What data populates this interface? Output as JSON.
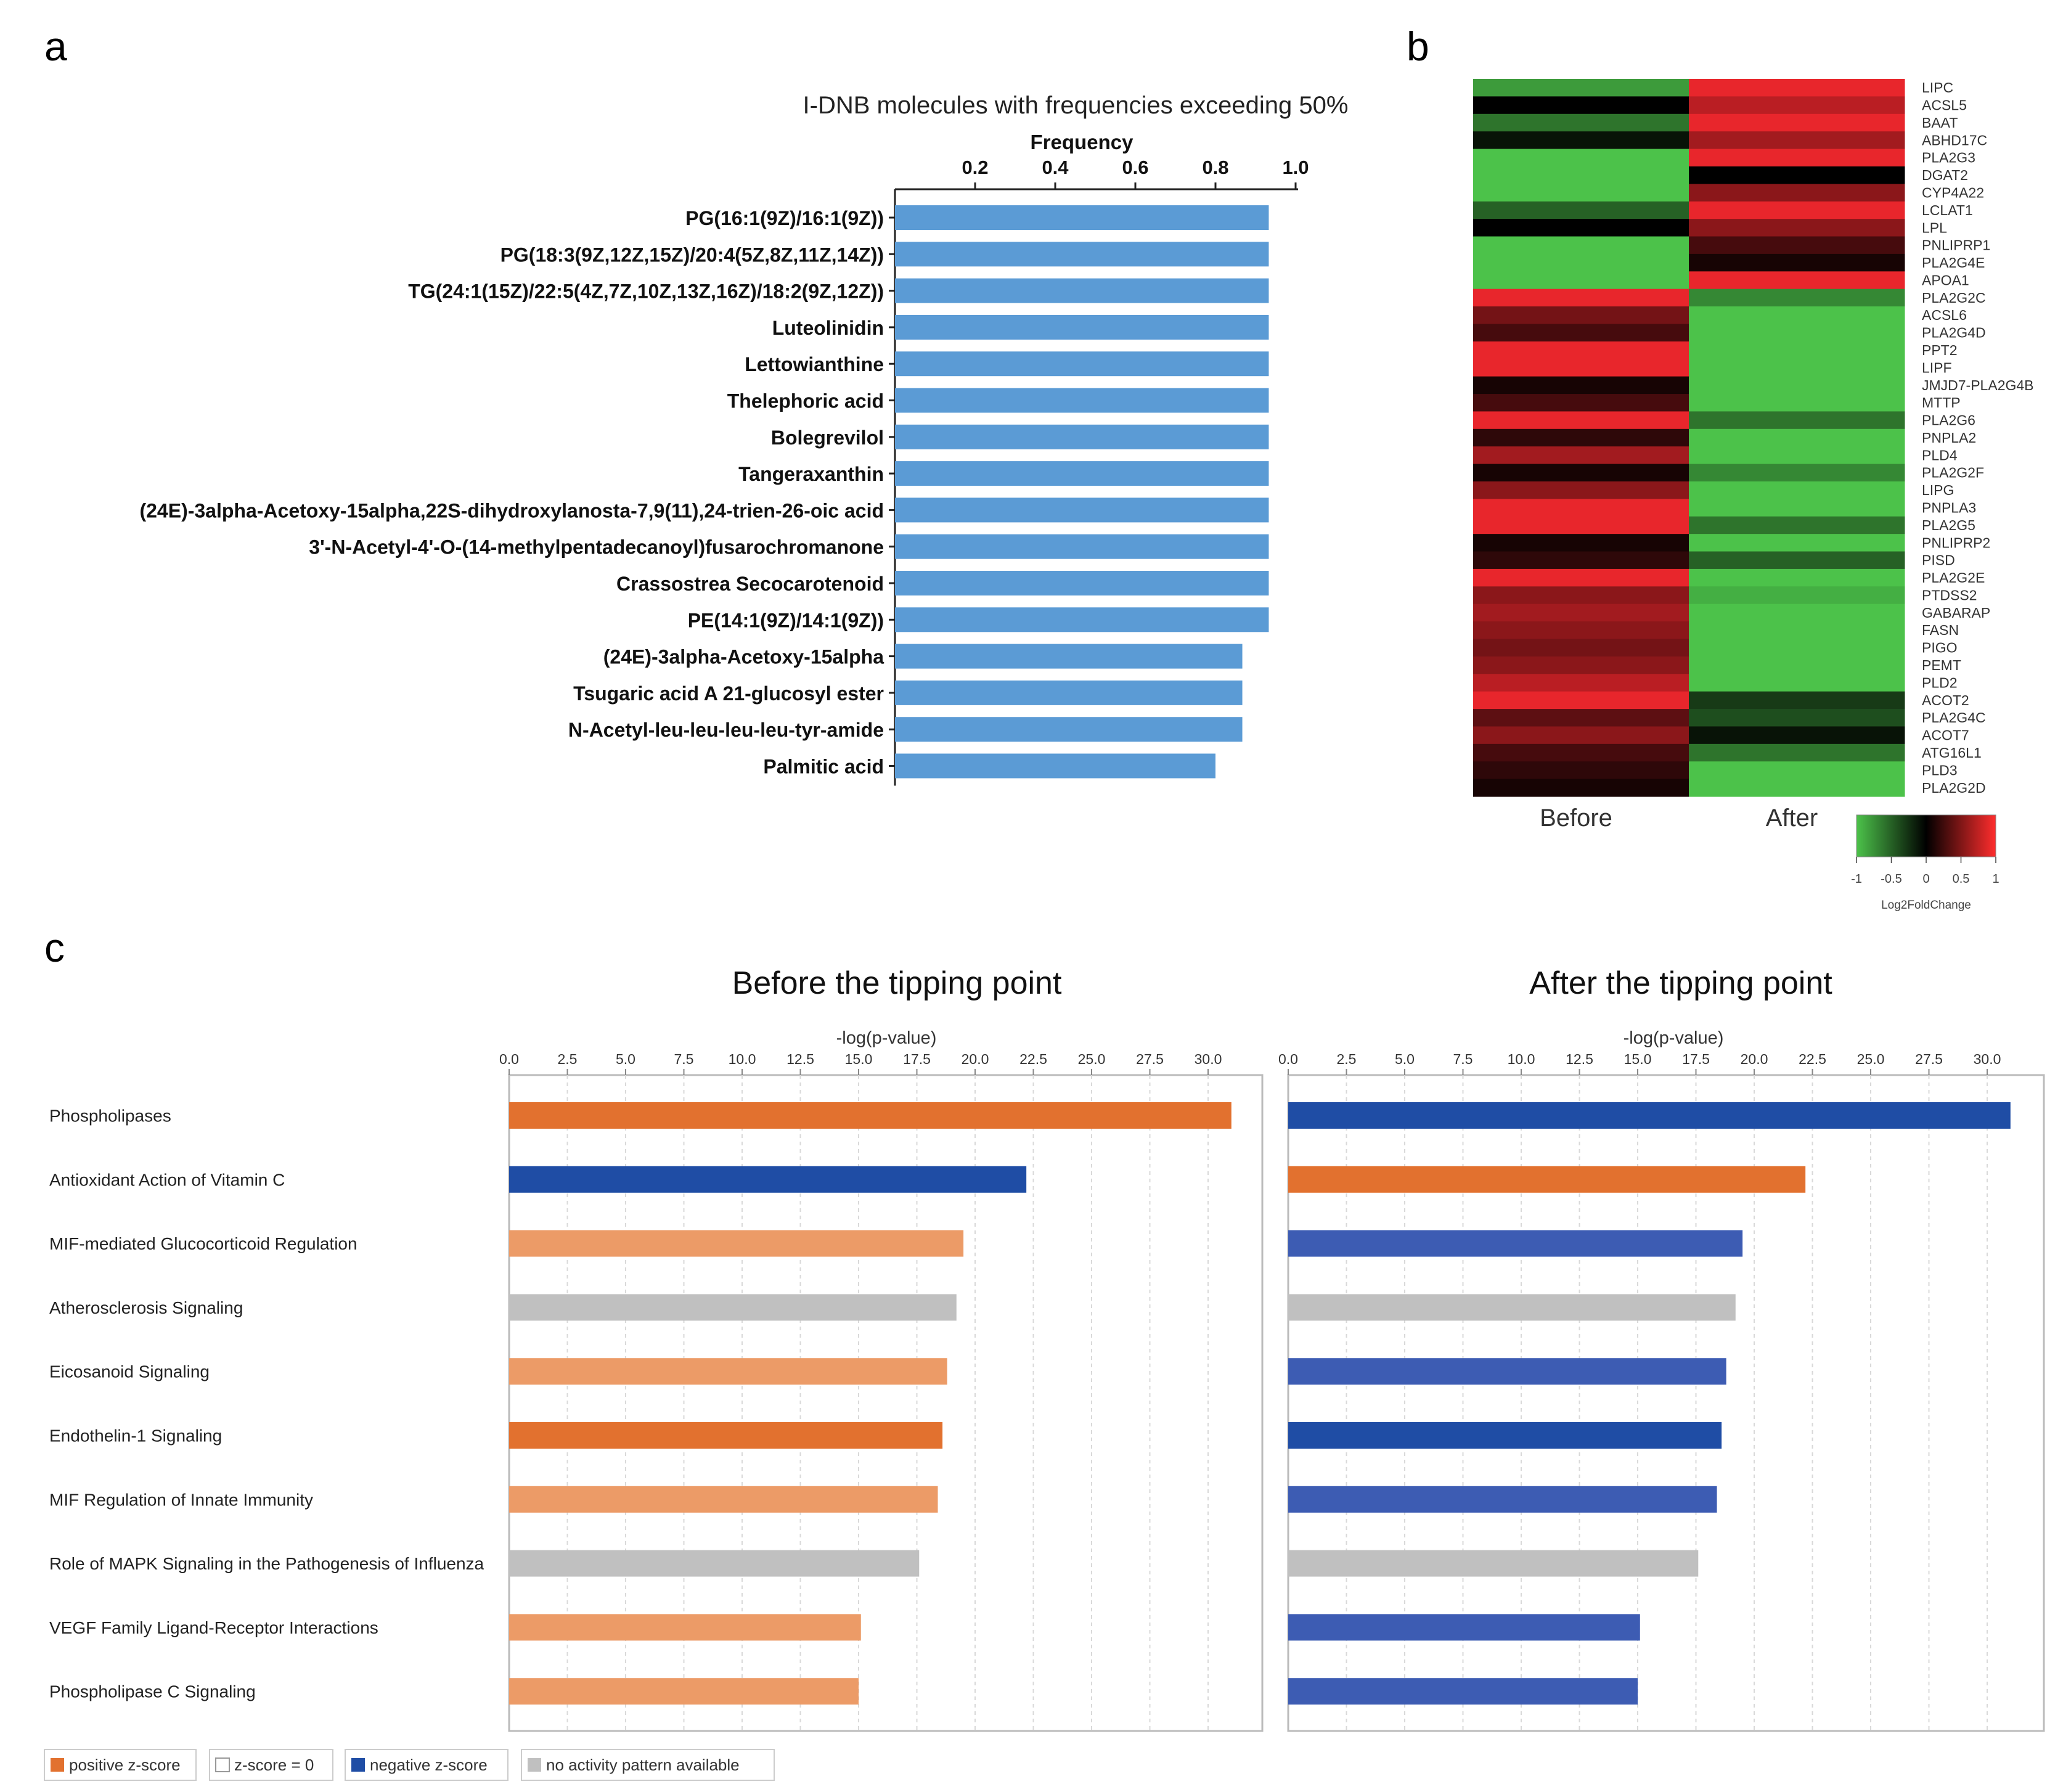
{
  "panels": {
    "a": "a",
    "b": "b",
    "c": "c"
  },
  "colors": {
    "blue_bar": "#5b9bd5",
    "orange": "#e2712f",
    "light_orange": "#ec9b67",
    "dark_blue": "#1f4da5",
    "mid_blue": "#3d5cb3",
    "gray": "#c0c0c0",
    "green": "#66c04a",
    "red": "#e8262c"
  },
  "chart_data": [
    {
      "id": "a",
      "type": "bar",
      "orientation": "horizontal",
      "title": "I-DNB molecules with frequencies exceeding 50%",
      "xlabel": "Frequency",
      "xlim": [
        0,
        1.0
      ],
      "ticks": [
        0.2,
        0.4,
        0.6,
        0.8,
        1.0
      ],
      "tick_labels": [
        "0.2",
        "0.4",
        "0.6",
        "0.8",
        "1.0"
      ],
      "categories": [
        "PG(16:1(9Z)/16:1(9Z))",
        "PG(18:3(9Z,12Z,15Z)/20:4(5Z,8Z,11Z,14Z))",
        "TG(24:1(15Z)/22:5(4Z,7Z,10Z,13Z,16Z)/18:2(9Z,12Z))",
        "Luteolinidin",
        "Lettowianthine",
        "Thelephoric acid",
        "Bolegrevilol",
        "Tangeraxanthin",
        "(24E)-3alpha-Acetoxy-15alpha,22S-dihydroxylanosta-7,9(11),24-trien-26-oic acid",
        "3'-N-Acetyl-4'-O-(14-methylpentadecanoyl)fusarochromanone",
        "Crassostrea Secocarotenoid",
        "PE(14:1(9Z)/14:1(9Z))",
        "(24E)-3alpha-Acetoxy-15alpha",
        "Tsugaric acid A 21-glucosyl ester",
        "N-Acetyl-leu-leu-leu-leu-tyr-amide",
        "Palmitic acid"
      ],
      "values": [
        0.933,
        0.933,
        0.933,
        0.933,
        0.933,
        0.933,
        0.933,
        0.933,
        0.933,
        0.933,
        0.933,
        0.933,
        0.867,
        0.867,
        0.867,
        0.8
      ]
    },
    {
      "id": "b",
      "type": "heatmap",
      "columns": [
        "Before",
        "After"
      ],
      "rows": [
        "LIPC",
        "ACSL5",
        "BAAT",
        "ABHD17C",
        "PLA2G3",
        "DGAT2",
        "CYP4A22",
        "LCLAT1",
        "LPL",
        "PNLIPRP1",
        "PLA2G4E",
        "APOA1",
        "PLA2G2C",
        "ACSL6",
        "PLA2G4D",
        "PPT2",
        "LIPF",
        "JMJD7-PLA2G4B",
        "MTTP",
        "PLA2G6",
        "PNPLA2",
        "PLD4",
        "PLA2G2F",
        "LIPG",
        "PNPLA3",
        "PLA2G5",
        "PNLIPRP2",
        "PISD",
        "PLA2G2E",
        "PTDSS2",
        "GABARAP",
        "FASN",
        "PIGO",
        "PEMT",
        "PLD2",
        "ACOT2",
        "PLA2G4C",
        "ACOT7",
        "ATG16L1",
        "PLD3",
        "PLA2G2D"
      ],
      "values": [
        [
          -0.8,
          1.0
        ],
        [
          0.0,
          0.8
        ],
        [
          -0.6,
          1.0
        ],
        [
          -0.1,
          0.7
        ],
        [
          -1.0,
          1.0
        ],
        [
          -1.0,
          0.0
        ],
        [
          -1.0,
          0.6
        ],
        [
          -0.5,
          1.0
        ],
        [
          0.0,
          0.6
        ],
        [
          -1.0,
          0.3
        ],
        [
          -1.0,
          0.1
        ],
        [
          -1.0,
          1.0
        ],
        [
          1.0,
          -0.7
        ],
        [
          0.5,
          -1.0
        ],
        [
          0.3,
          -1.0
        ],
        [
          1.0,
          -1.0
        ],
        [
          1.0,
          -1.0
        ],
        [
          0.1,
          -1.0
        ],
        [
          0.3,
          -1.0
        ],
        [
          1.0,
          -0.6
        ],
        [
          0.2,
          -1.0
        ],
        [
          0.7,
          -1.0
        ],
        [
          0.1,
          -0.7
        ],
        [
          0.6,
          -1.0
        ],
        [
          1.0,
          -1.0
        ],
        [
          1.0,
          -0.6
        ],
        [
          0.1,
          -1.0
        ],
        [
          0.2,
          -0.5
        ],
        [
          1.0,
          -1.0
        ],
        [
          0.6,
          -0.9
        ],
        [
          0.7,
          -1.0
        ],
        [
          0.6,
          -1.0
        ],
        [
          0.5,
          -1.0
        ],
        [
          0.6,
          -1.0
        ],
        [
          0.8,
          -1.0
        ],
        [
          1.0,
          -0.3
        ],
        [
          0.4,
          -0.4
        ],
        [
          0.6,
          -0.1
        ],
        [
          0.3,
          -0.6
        ],
        [
          0.2,
          -1.0
        ],
        [
          0.1,
          -1.0
        ]
      ],
      "colorbar": {
        "range": [
          -1,
          1
        ],
        "tick_labels": [
          "-1",
          "-0.5",
          "0",
          "0.5",
          "1"
        ],
        "label": "Log2FoldChange",
        "colors": [
          "#4cc24a",
          "#000000",
          "#ff2d2d"
        ]
      }
    },
    {
      "id": "c",
      "type": "bar",
      "orientation": "horizontal",
      "xlabel": "-log(p-value)",
      "xlim": [
        0,
        32.5
      ],
      "ticks": [
        0,
        2.5,
        5,
        7.5,
        10,
        12.5,
        15,
        17.5,
        20,
        22.5,
        25,
        27.5,
        30
      ],
      "tick_labels": [
        "0.0",
        "2.5",
        "5.0",
        "7.5",
        "10.0",
        "12.5",
        "15.0",
        "17.5",
        "20.0",
        "22.5",
        "25.0",
        "27.5",
        "30.0"
      ],
      "categories": [
        "Phospholipases",
        "Antioxidant Action of Vitamin C",
        "MIF-mediated Glucocorticoid Regulation",
        "Atherosclerosis Signaling",
        "Eicosanoid Signaling",
        "Endothelin-1 Signaling",
        "MIF Regulation of Innate Immunity",
        "Role of MAPK Signaling in the Pathogenesis of Influenza",
        "VEGF Family Ligand-Receptor Interactions",
        "Phospholipase C Signaling"
      ],
      "series": [
        {
          "name": "Before the tipping point",
          "values": [
            31.0,
            22.2,
            19.5,
            19.2,
            18.8,
            18.6,
            18.4,
            17.6,
            15.1,
            15.0
          ],
          "colors": [
            "#e2712f",
            "#1f4da5",
            "#ec9b67",
            "#c0c0c0",
            "#ec9b67",
            "#e2712f",
            "#ec9b67",
            "#c0c0c0",
            "#ec9b67",
            "#ec9b67"
          ]
        },
        {
          "name": "After the tipping point",
          "values": [
            31.0,
            22.2,
            19.5,
            19.2,
            18.8,
            18.6,
            18.4,
            17.6,
            15.1,
            15.0
          ],
          "colors": [
            "#1f4da5",
            "#e2712f",
            "#3d5cb3",
            "#c0c0c0",
            "#3d5cb3",
            "#1f4da5",
            "#3d5cb3",
            "#c0c0c0",
            "#3d5cb3",
            "#3d5cb3"
          ]
        }
      ],
      "legend": [
        {
          "label": "positive z-score",
          "color": "#e2712f"
        },
        {
          "label": "z-score = 0",
          "color": "#ffffff"
        },
        {
          "label": "negative z-score",
          "color": "#1f4da5"
        },
        {
          "label": "no activity pattern available",
          "color": "#c0c0c0"
        }
      ]
    }
  ]
}
